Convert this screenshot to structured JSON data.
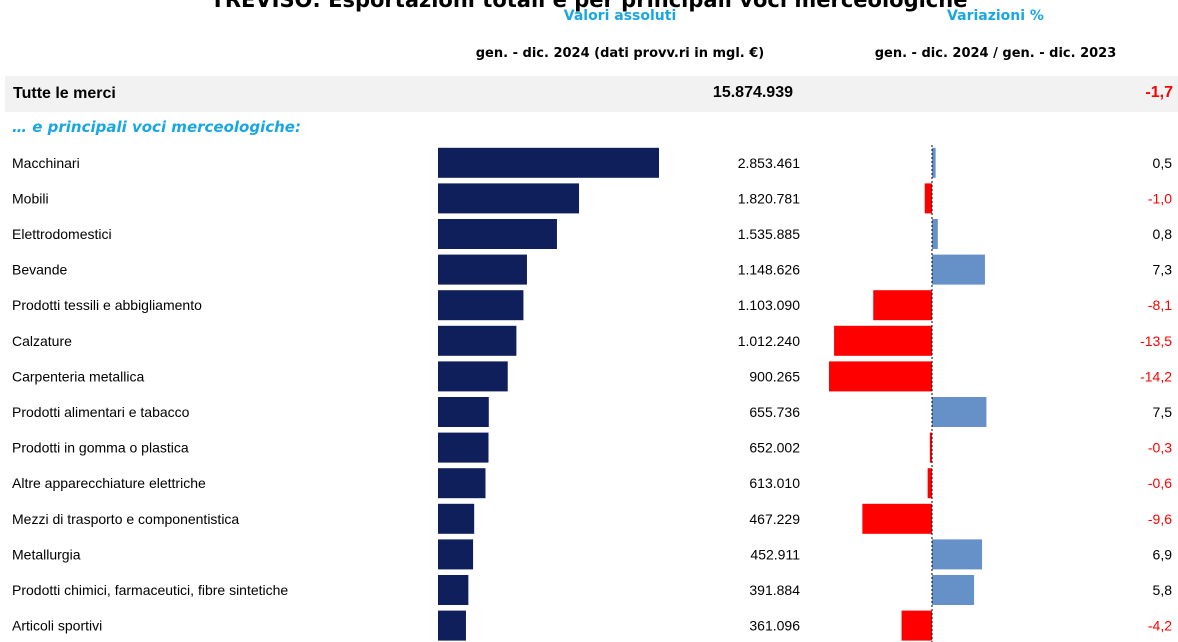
{
  "title": "TREVISO: Esportazioni totali e per principali voci merceologiche",
  "headers": {
    "abs_group": "Valori assoluti",
    "abs_period": "gen. - dic. 2024 (dati provv.ri in mgl. €)",
    "var_group": "Variazioni %",
    "var_period": "gen. - dic. 2024 / gen. - dic. 2023"
  },
  "total": {
    "label": "Tutte le merci",
    "value": "15.874.939",
    "pct": "-1,7"
  },
  "subtitle": "… e principali voci merceologiche:",
  "colors": {
    "abs_bar": "#0e1f5c",
    "pos_bar": "#6690c8",
    "neg_bar": "#ff0000",
    "neg_text": "#ff0000",
    "header_accent": "#1aa7e0"
  },
  "chart_data": {
    "type": "bar",
    "categories": [
      "Macchinari",
      "Mobili",
      "Elettrodomestici",
      "Bevande",
      "Prodotti tessili e abbigliamento",
      "Calzature",
      "Carpenteria metallica",
      "Prodotti alimentari e tabacco",
      "Prodotti in gomma o plastica",
      "Altre apparecchiature elettriche",
      "Mezzi di trasporto e componentistica",
      "Metallurgia",
      "Prodotti chimici, farmaceutici, fibre sintetiche",
      "Articoli sportivi"
    ],
    "series": [
      {
        "name": "Valori assoluti",
        "values": [
          2853461,
          1820781,
          1535885,
          1148626,
          1103090,
          1012240,
          900265,
          655736,
          652002,
          613010,
          467229,
          452911,
          391884,
          361096
        ],
        "labels": [
          "2.853.461",
          "1.820.781",
          "1.535.885",
          "1.148.626",
          "1.103.090",
          "1.012.240",
          "900.265",
          "655.736",
          "652.002",
          "613.010",
          "467.229",
          "452.911",
          "391.884",
          "361.096"
        ]
      },
      {
        "name": "Variazioni %",
        "values": [
          0.5,
          -1.0,
          0.8,
          7.3,
          -8.1,
          -13.5,
          -14.2,
          7.5,
          -0.3,
          -0.6,
          -9.6,
          6.9,
          5.8,
          -4.2
        ],
        "labels": [
          "0,5",
          "-1,0",
          "0,8",
          "7,3",
          "-8,1",
          "-13,5",
          "-14,2",
          "7,5",
          "-0,3",
          "-0,6",
          "-9,6",
          "6,9",
          "5,8",
          "-4,2"
        ]
      }
    ]
  }
}
